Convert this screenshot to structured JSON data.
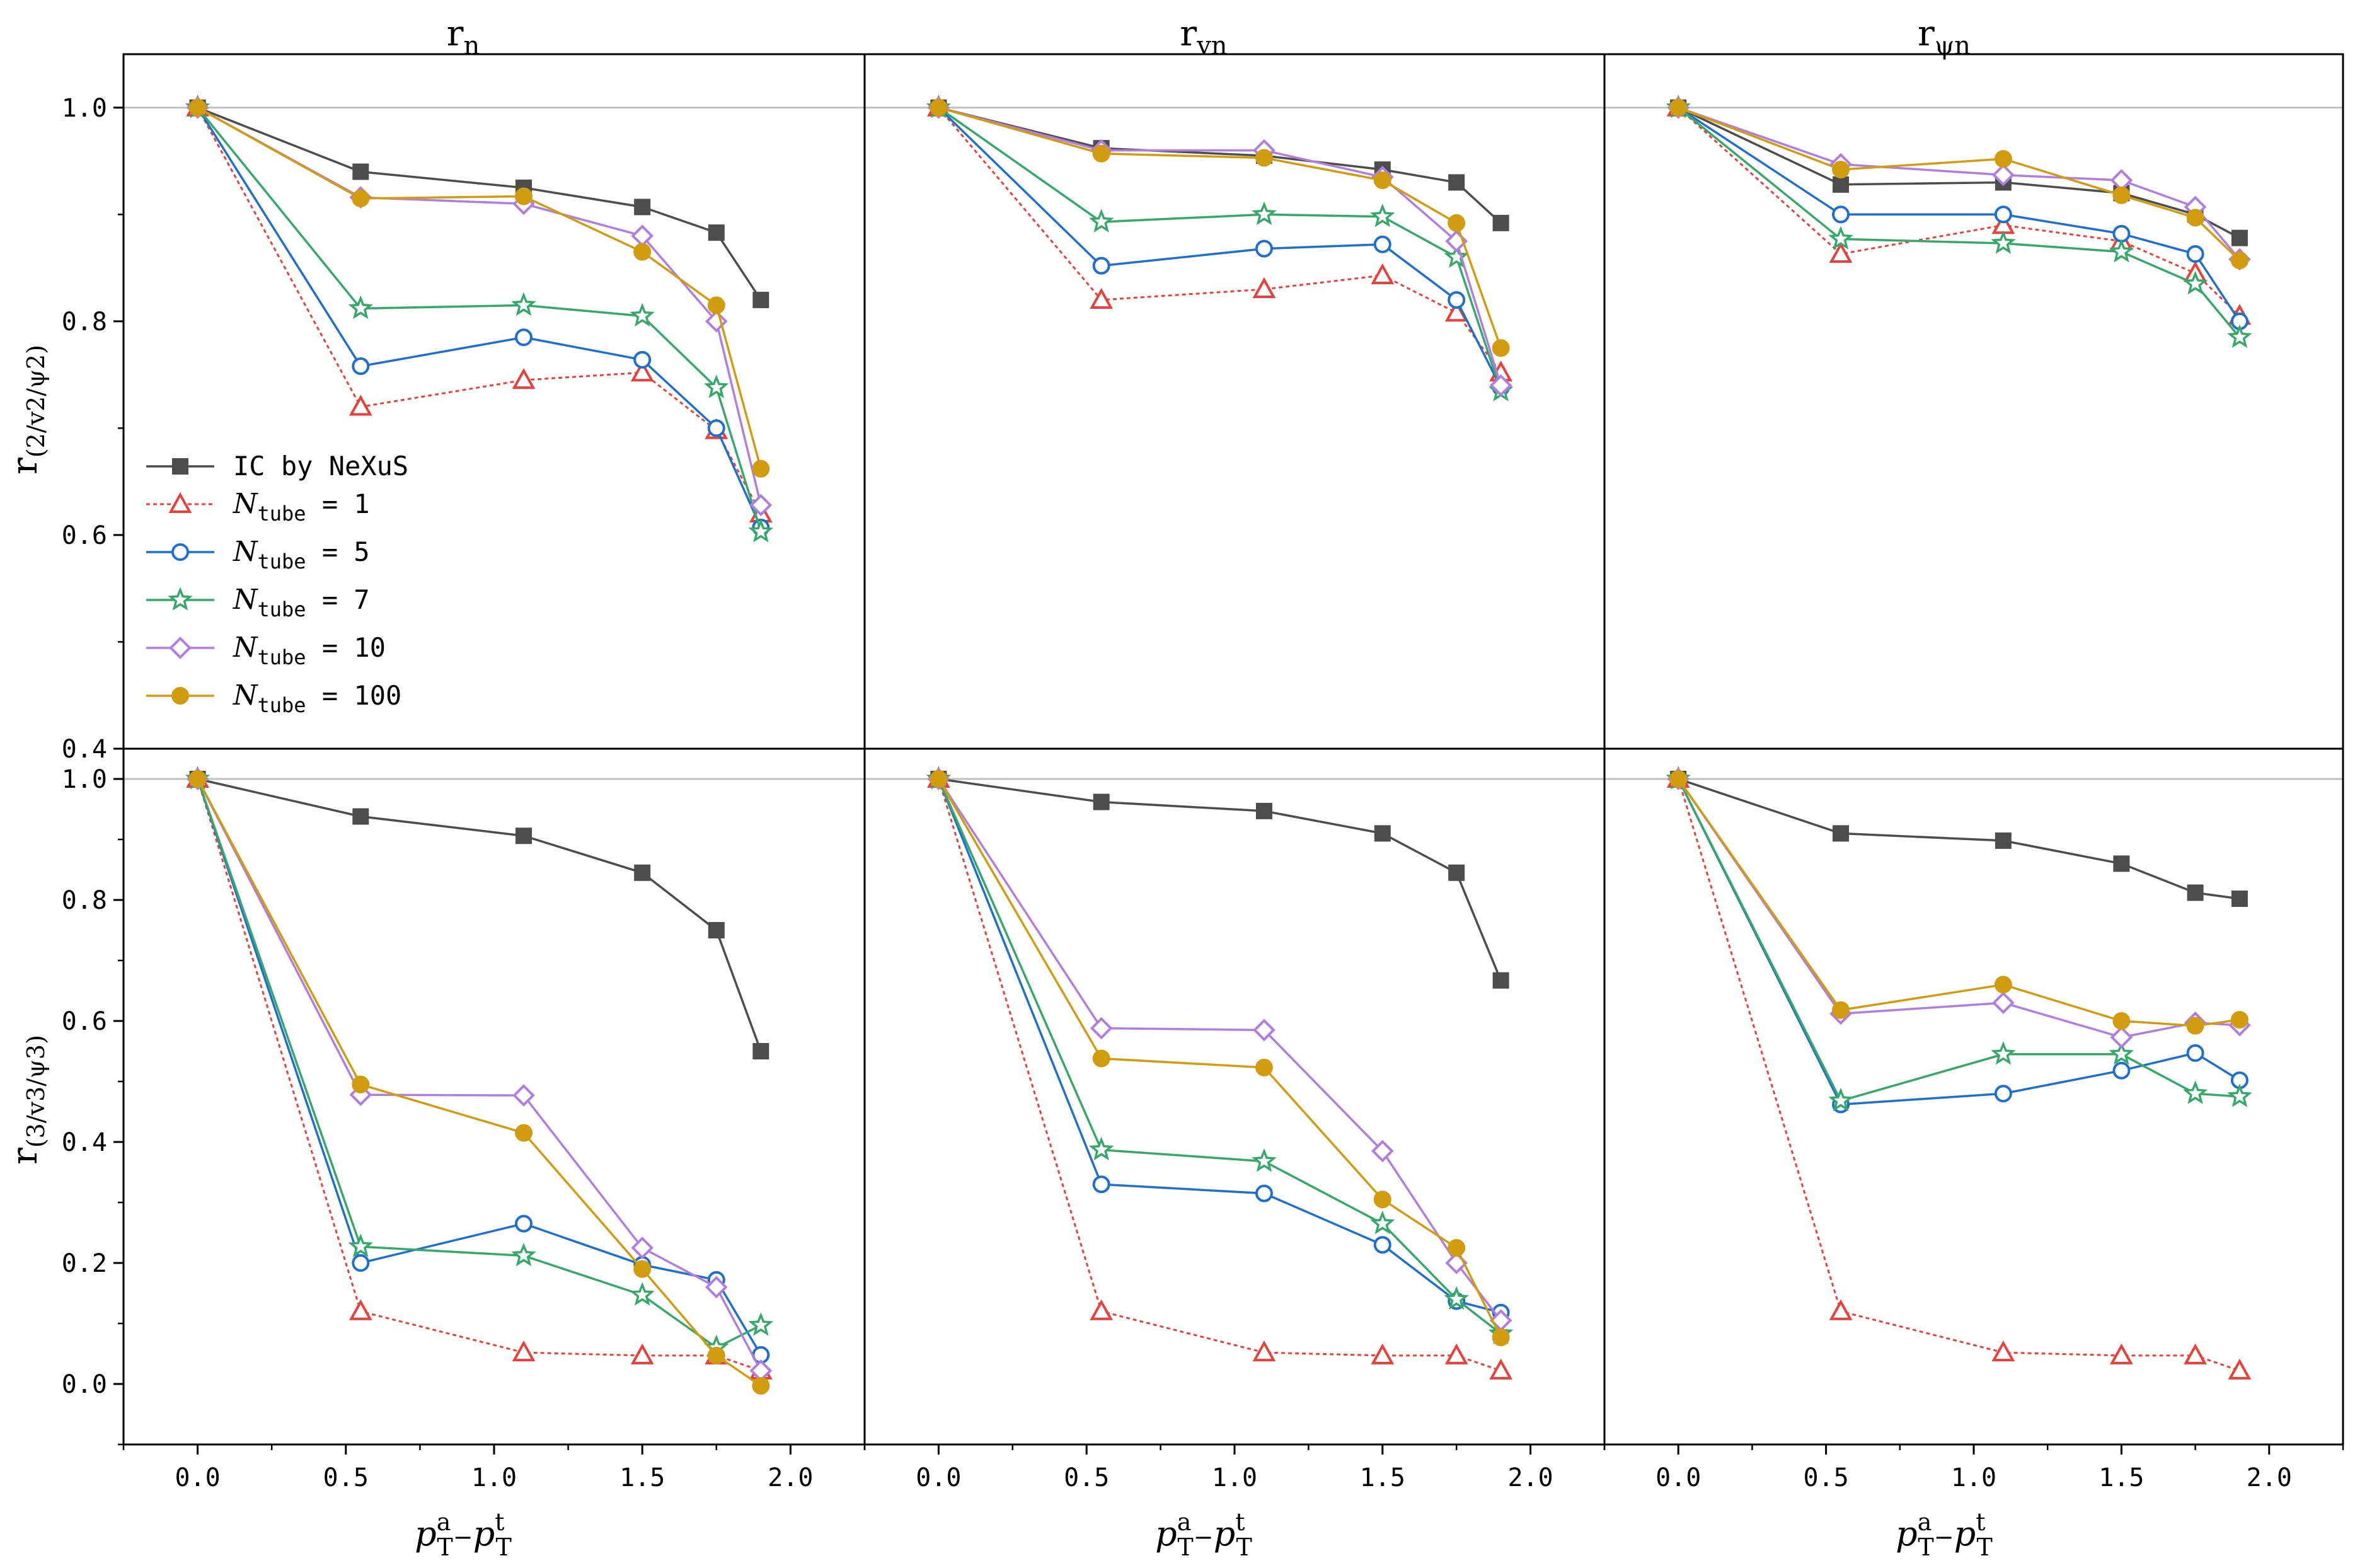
{
  "figure": {
    "column_titles": [
      {
        "main": "r",
        "sub": "n"
      },
      {
        "main": "r",
        "sub": "vn"
      },
      {
        "main": "r",
        "sub": "ψn"
      }
    ],
    "row_ylabels": [
      {
        "main": "r",
        "sub": "(2/v2/ψ2)"
      },
      {
        "main": "r",
        "sub": "(3/v3/ψ3)"
      }
    ],
    "xlabel": {
      "base": "p",
      "sup_a": "a",
      "sub_T": "T",
      "minus": "−",
      "sup_t": "t"
    },
    "legend": {
      "items": [
        {
          "label": "IC by NeXuS",
          "prefix": "",
          "sub": "",
          "value": ""
        },
        {
          "label": "",
          "prefix": "N",
          "sub": "tube",
          "value": " = 1"
        },
        {
          "label": "",
          "prefix": "N",
          "sub": "tube",
          "value": " = 5"
        },
        {
          "label": "",
          "prefix": "N",
          "sub": "tube",
          "value": " = 7"
        },
        {
          "label": "",
          "prefix": "N",
          "sub": "tube",
          "value": " = 10"
        },
        {
          "label": "",
          "prefix": "N",
          "sub": "tube",
          "value": " = 100"
        }
      ]
    }
  },
  "styles": [
    {
      "color": "#4d4d4d",
      "marker": "square-filled",
      "dash": "solid"
    },
    {
      "color": "#e8413c",
      "marker": "triangle-open",
      "dash": "dotted"
    },
    {
      "color": "#1f6fcf",
      "marker": "circle-open",
      "dash": "solid"
    },
    {
      "color": "#35a86a",
      "marker": "star-open",
      "dash": "solid"
    },
    {
      "color": "#b07ee0",
      "marker": "diamond-open",
      "dash": "solid"
    },
    {
      "color": "#d19c10",
      "marker": "circle-filled",
      "dash": "solid"
    }
  ],
  "chart_data": [
    {
      "type": "line",
      "panel": "top-left",
      "x": [
        0.0,
        0.55,
        1.1,
        1.5,
        1.75,
        1.9
      ],
      "xlim": [
        -0.25,
        2.25
      ],
      "ylim": [
        0.4,
        1.05
      ],
      "yticks": [
        "0.4",
        "0.6",
        "0.8",
        "1.0"
      ],
      "xticks": [],
      "reference_line": 1.0,
      "legend": "center-left",
      "series": [
        {
          "name": "IC by NeXuS",
          "values": [
            1.0,
            0.94,
            0.925,
            0.907,
            0.883,
            0.82
          ]
        },
        {
          "name": "N_tube = 1",
          "values": [
            1.0,
            0.72,
            0.745,
            0.752,
            0.698,
            0.62
          ]
        },
        {
          "name": "N_tube = 5",
          "values": [
            1.0,
            0.758,
            0.785,
            0.764,
            0.7,
            0.607
          ]
        },
        {
          "name": "N_tube = 7",
          "values": [
            1.0,
            0.812,
            0.815,
            0.805,
            0.738,
            0.603
          ]
        },
        {
          "name": "N_tube = 10",
          "values": [
            1.0,
            0.916,
            0.91,
            0.88,
            0.8,
            0.628
          ]
        },
        {
          "name": "N_tube = 100",
          "values": [
            1.0,
            0.915,
            0.917,
            0.865,
            0.815,
            0.662
          ]
        }
      ]
    },
    {
      "type": "line",
      "panel": "top-middle",
      "x": [
        0.0,
        0.55,
        1.1,
        1.5,
        1.75,
        1.9
      ],
      "xlim": [
        -0.25,
        2.25
      ],
      "ylim": [
        0.4,
        1.05
      ],
      "yticks": [],
      "xticks": [],
      "reference_line": 1.0,
      "series": [
        {
          "name": "IC by NeXuS",
          "values": [
            1.0,
            0.962,
            0.955,
            0.942,
            0.93,
            0.892
          ]
        },
        {
          "name": "N_tube = 1",
          "values": [
            1.0,
            0.82,
            0.83,
            0.843,
            0.808,
            0.752
          ]
        },
        {
          "name": "N_tube = 5",
          "values": [
            1.0,
            0.852,
            0.868,
            0.872,
            0.82,
            0.738
          ]
        },
        {
          "name": "N_tube = 7",
          "values": [
            1.0,
            0.893,
            0.9,
            0.898,
            0.86,
            0.735
          ]
        },
        {
          "name": "N_tube = 10",
          "values": [
            1.0,
            0.96,
            0.96,
            0.935,
            0.875,
            0.74
          ]
        },
        {
          "name": "N_tube = 100",
          "values": [
            1.0,
            0.957,
            0.953,
            0.932,
            0.892,
            0.775
          ]
        }
      ]
    },
    {
      "type": "line",
      "panel": "top-right",
      "x": [
        0.0,
        0.55,
        1.1,
        1.5,
        1.75,
        1.9
      ],
      "xlim": [
        -0.25,
        2.25
      ],
      "ylim": [
        0.4,
        1.05
      ],
      "yticks": [],
      "xticks": [],
      "reference_line": 1.0,
      "series": [
        {
          "name": "IC by NeXuS",
          "values": [
            1.0,
            0.928,
            0.93,
            0.92,
            0.9,
            0.878
          ]
        },
        {
          "name": "N_tube = 1",
          "values": [
            1.0,
            0.863,
            0.89,
            0.875,
            0.845,
            0.805
          ]
        },
        {
          "name": "N_tube = 5",
          "values": [
            1.0,
            0.9,
            0.9,
            0.882,
            0.863,
            0.8
          ]
        },
        {
          "name": "N_tube = 7",
          "values": [
            1.0,
            0.877,
            0.873,
            0.865,
            0.835,
            0.785
          ]
        },
        {
          "name": "N_tube = 10",
          "values": [
            1.0,
            0.947,
            0.937,
            0.932,
            0.907,
            0.858
          ]
        },
        {
          "name": "N_tube = 100",
          "values": [
            1.0,
            0.942,
            0.952,
            0.918,
            0.897,
            0.857
          ]
        }
      ]
    },
    {
      "type": "line",
      "panel": "bottom-left",
      "x": [
        0.0,
        0.55,
        1.1,
        1.5,
        1.75,
        1.9
      ],
      "xlim": [
        -0.25,
        2.25
      ],
      "ylim": [
        -0.1,
        1.05
      ],
      "yticks": [
        "0.0",
        "0.2",
        "0.4",
        "0.6",
        "0.8",
        "1.0"
      ],
      "xticks": [
        "0.0",
        "0.5",
        "1.0",
        "1.5",
        "2.0"
      ],
      "reference_line": 1.0,
      "series": [
        {
          "name": "IC by NeXuS",
          "values": [
            1.0,
            0.938,
            0.906,
            0.845,
            0.75,
            0.55
          ]
        },
        {
          "name": "N_tube = 1",
          "values": [
            1.0,
            0.12,
            0.052,
            0.047,
            0.047,
            0.022
          ]
        },
        {
          "name": "N_tube = 5",
          "values": [
            1.0,
            0.2,
            0.265,
            0.197,
            0.172,
            0.048
          ]
        },
        {
          "name": "N_tube = 7",
          "values": [
            1.0,
            0.227,
            0.212,
            0.147,
            0.06,
            0.097
          ]
        },
        {
          "name": "N_tube = 10",
          "values": [
            1.0,
            0.478,
            0.477,
            0.225,
            0.16,
            0.022
          ]
        },
        {
          "name": "N_tube = 100",
          "values": [
            1.0,
            0.495,
            0.415,
            0.19,
            0.047,
            -0.003
          ]
        }
      ]
    },
    {
      "type": "line",
      "panel": "bottom-middle",
      "x": [
        0.0,
        0.55,
        1.1,
        1.5,
        1.75,
        1.9
      ],
      "xlim": [
        -0.25,
        2.25
      ],
      "ylim": [
        -0.1,
        1.05
      ],
      "yticks": [],
      "xticks": [
        "0.0",
        "0.5",
        "1.0",
        "1.5",
        "2.0"
      ],
      "reference_line": 1.0,
      "series": [
        {
          "name": "IC by NeXuS",
          "values": [
            1.0,
            0.962,
            0.947,
            0.91,
            0.845,
            0.667
          ]
        },
        {
          "name": "N_tube = 1",
          "values": [
            1.0,
            0.12,
            0.052,
            0.047,
            0.047,
            0.022
          ]
        },
        {
          "name": "N_tube = 5",
          "values": [
            1.0,
            0.33,
            0.315,
            0.23,
            0.137,
            0.118
          ]
        },
        {
          "name": "N_tube = 7",
          "values": [
            1.0,
            0.387,
            0.368,
            0.265,
            0.14,
            0.083
          ]
        },
        {
          "name": "N_tube = 10",
          "values": [
            1.0,
            0.588,
            0.585,
            0.385,
            0.2,
            0.105
          ]
        },
        {
          "name": "N_tube = 100",
          "values": [
            1.0,
            0.538,
            0.523,
            0.305,
            0.225,
            0.077
          ]
        }
      ]
    },
    {
      "type": "line",
      "panel": "bottom-right",
      "x": [
        0.0,
        0.55,
        1.1,
        1.5,
        1.75,
        1.9
      ],
      "xlim": [
        -0.25,
        2.25
      ],
      "ylim": [
        -0.1,
        1.05
      ],
      "yticks": [],
      "xticks": [
        "0.0",
        "0.5",
        "1.0",
        "1.5",
        "2.0"
      ],
      "reference_line": 1.0,
      "series": [
        {
          "name": "IC by NeXuS",
          "values": [
            1.0,
            0.91,
            0.898,
            0.86,
            0.812,
            0.802
          ]
        },
        {
          "name": "N_tube = 1",
          "values": [
            1.0,
            0.12,
            0.052,
            0.047,
            0.047,
            0.022
          ]
        },
        {
          "name": "N_tube = 5",
          "values": [
            1.0,
            0.462,
            0.48,
            0.518,
            0.547,
            0.502
          ]
        },
        {
          "name": "N_tube = 7",
          "values": [
            1.0,
            0.468,
            0.545,
            0.545,
            0.48,
            0.475
          ]
        },
        {
          "name": "N_tube = 10",
          "values": [
            1.0,
            0.612,
            0.63,
            0.573,
            0.597,
            0.593
          ]
        },
        {
          "name": "N_tube = 100",
          "values": [
            1.0,
            0.618,
            0.66,
            0.6,
            0.592,
            0.602
          ]
        }
      ]
    }
  ]
}
